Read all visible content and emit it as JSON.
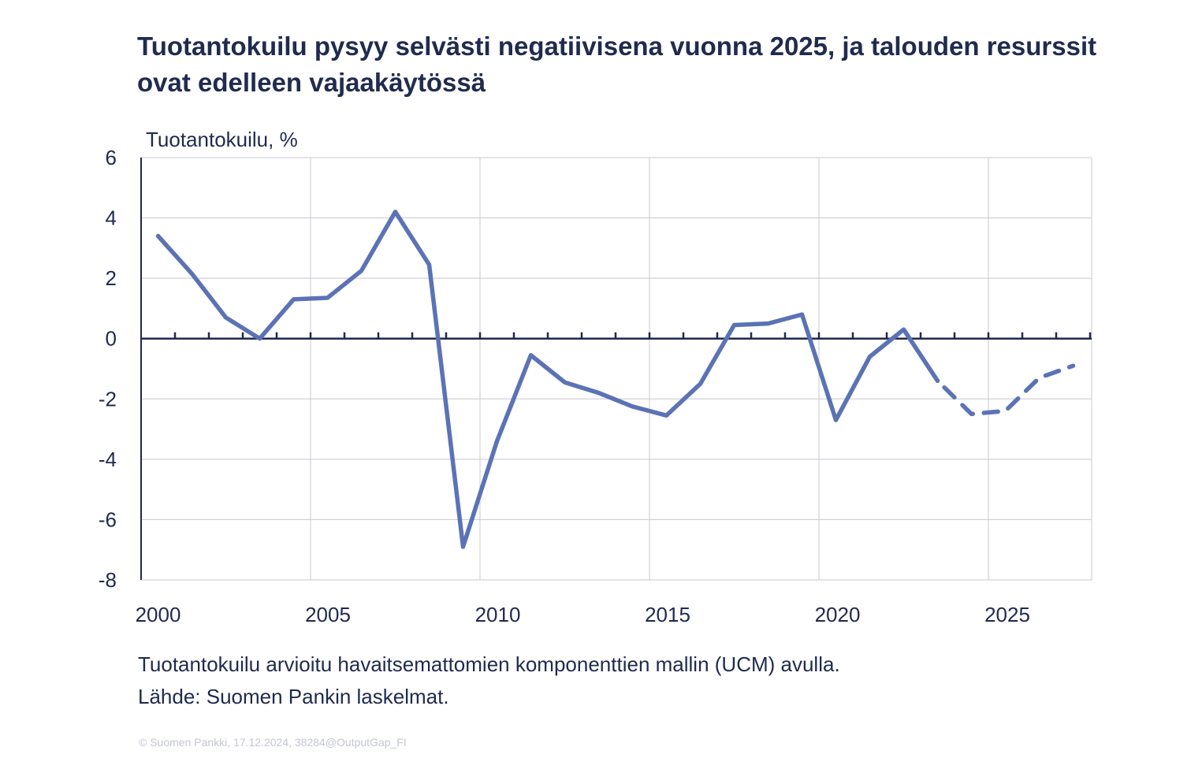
{
  "title": "Tuotantokuilu pysyy selvästi negatiivisena vuonna 2025, ja talouden resurssit ovat edelleen vajaakäytössä",
  "notes": [
    "Tuotantokuilu arvioitu havaitsemattomien komponenttien mallin (UCM) avulla.",
    "Lähde: Suomen Pankin laskelmat."
  ],
  "copyright": "© Suomen Pankki, 17.12.2024, 38284@OutputGap_FI",
  "colors": {
    "line": "#5b73b5",
    "axis": "#1f2a4d",
    "grid": "#c8c8d0"
  },
  "chart_data": {
    "type": "line",
    "title": "Tuotantokuilu pysyy selvästi negatiivisena vuonna 2025, ja talouden resurssit ovat edelleen vajaakäytössä",
    "ylabel": "Tuotantokuilu, %",
    "xlabel": "",
    "ylim": [
      -8,
      6
    ],
    "yticks": [
      6,
      4,
      2,
      0,
      -2,
      -4,
      -6,
      -8
    ],
    "xticks": [
      2000,
      2005,
      2010,
      2015,
      2020,
      2025
    ],
    "grid": true,
    "forecast_from": 2023,
    "x": [
      2000,
      2001,
      2002,
      2003,
      2004,
      2005,
      2006,
      2007,
      2008,
      2009,
      2010,
      2011,
      2012,
      2013,
      2014,
      2015,
      2016,
      2017,
      2018,
      2019,
      2020,
      2021,
      2022,
      2023,
      2024,
      2025,
      2026,
      2027
    ],
    "series": [
      {
        "name": "Tuotantokuilu",
        "values": [
          3.4,
          2.15,
          0.7,
          0.0,
          1.3,
          1.35,
          2.25,
          4.2,
          2.45,
          -6.9,
          -3.4,
          -0.55,
          -1.45,
          -1.8,
          -2.25,
          -2.55,
          -1.5,
          0.45,
          0.5,
          0.8,
          -2.7,
          -0.6,
          0.3,
          -1.4,
          -2.5,
          -2.4,
          -1.3,
          -0.9
        ]
      }
    ]
  }
}
